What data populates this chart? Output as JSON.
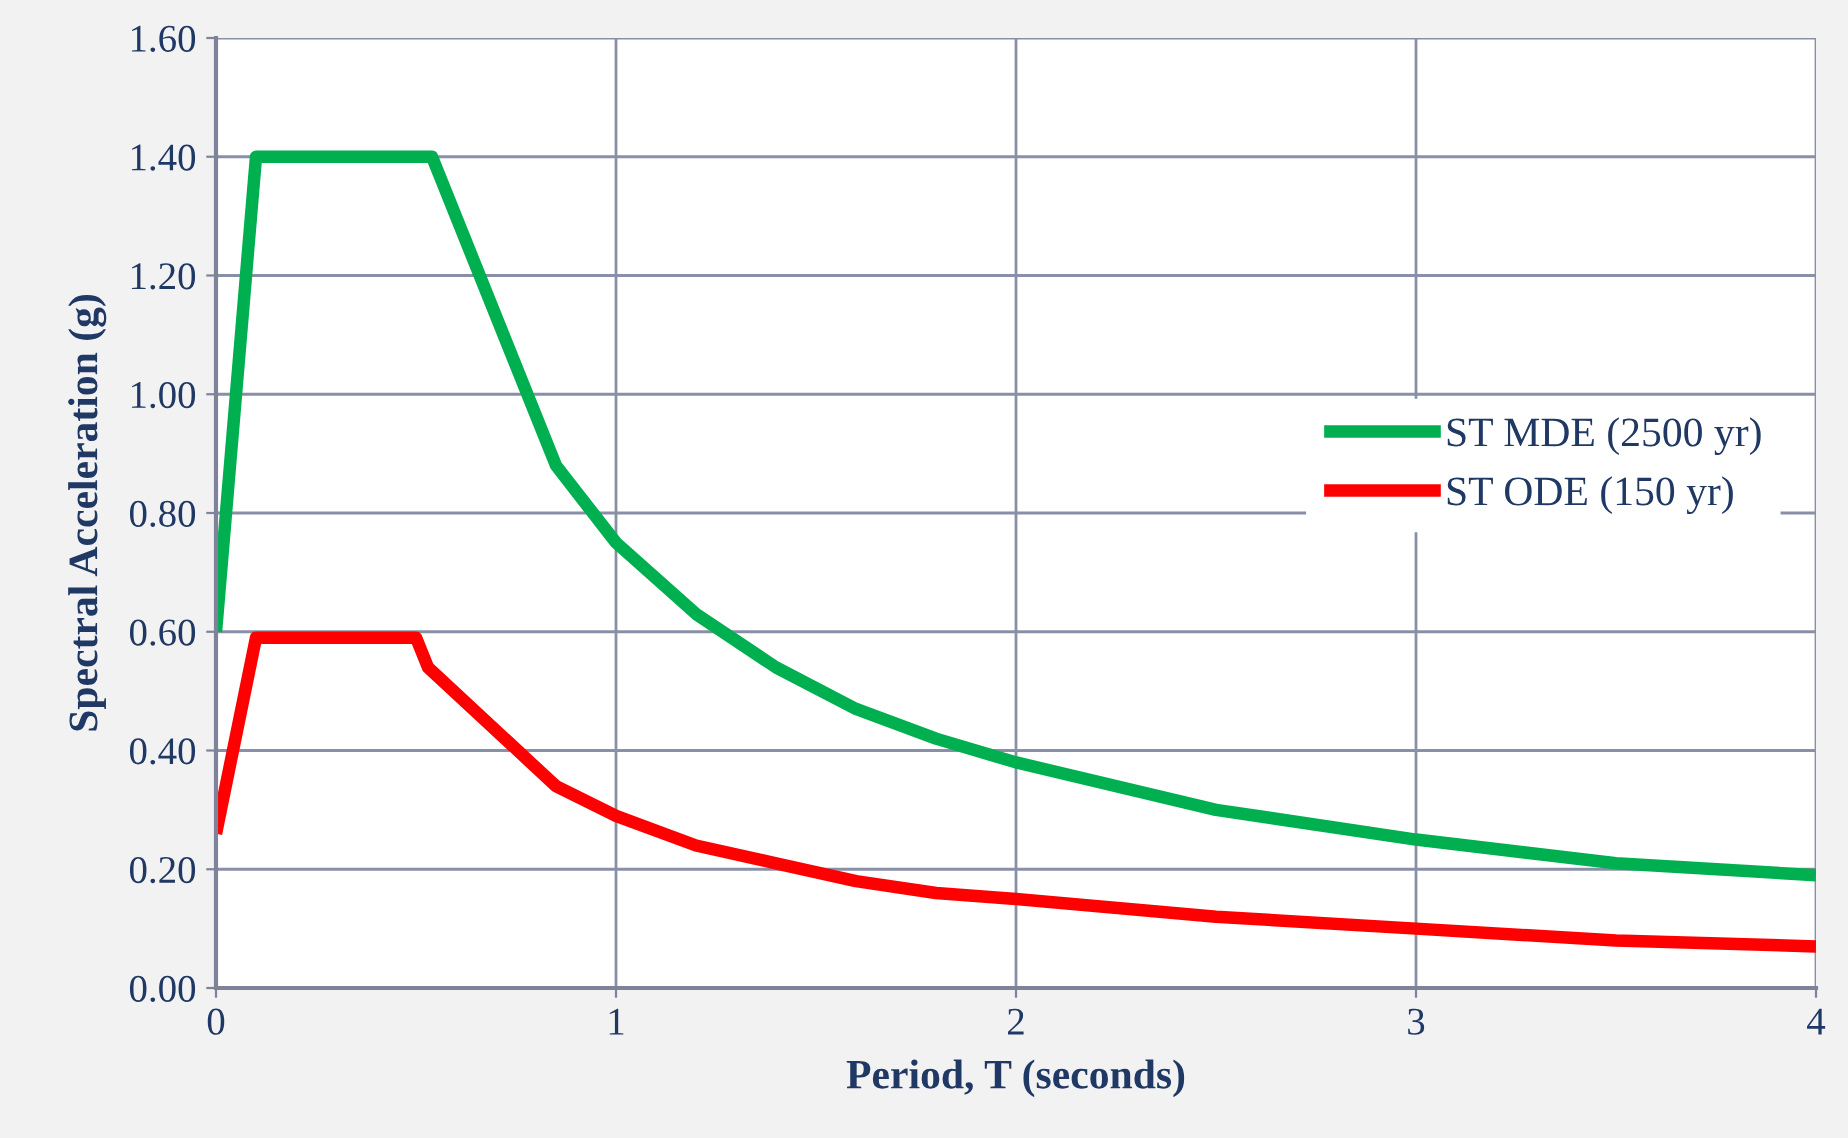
{
  "chart_data": {
    "type": "line",
    "xlabel": "Period, T (seconds)",
    "ylabel": "Spectral Acceleration (g)",
    "xlim": [
      0,
      4
    ],
    "xticks": [
      0,
      1,
      2,
      3,
      4
    ],
    "ylim": [
      0,
      1.6
    ],
    "yticks": [
      {
        "value": 0,
        "label": "0.00"
      },
      {
        "value": 0.2,
        "label": "0.20"
      },
      {
        "value": 0.4,
        "label": "0.40"
      },
      {
        "value": 0.6,
        "label": "0.60"
      },
      {
        "value": 0.8,
        "label": "0.80"
      },
      {
        "value": 1.0,
        "label": "1.00"
      },
      {
        "value": 1.2,
        "label": "1.20"
      },
      {
        "value": 1.4,
        "label": "1.40"
      },
      {
        "value": 1.6,
        "label": "1.60"
      }
    ],
    "grid": true,
    "legend": "right",
    "marker": "none",
    "line_style": "solid",
    "series": [
      {
        "name": "ST MDE (2500 yr)",
        "color": "#00b050",
        "x": [
          0,
          0.1,
          0.54,
          0.85,
          1,
          1.2,
          1.4,
          1.6,
          1.8,
          2,
          2.5,
          3,
          3.5,
          4
        ],
        "values": [
          0.6,
          1.4,
          1.4,
          0.88,
          0.75,
          0.63,
          0.54,
          0.47,
          0.42,
          0.38,
          0.3,
          0.25,
          0.21,
          0.19
        ]
      },
      {
        "name": "ST ODE (150 yr)",
        "color": "#ff0000",
        "x": [
          0,
          0.1,
          0.5,
          0.53,
          0.85,
          1,
          1.2,
          1.4,
          1.6,
          1.8,
          2,
          2.5,
          3,
          3.5,
          4
        ],
        "values": [
          0.26,
          0.59,
          0.59,
          0.54,
          0.34,
          0.29,
          0.24,
          0.21,
          0.18,
          0.16,
          0.15,
          0.12,
          0.1,
          0.08,
          0.07
        ]
      }
    ]
  }
}
